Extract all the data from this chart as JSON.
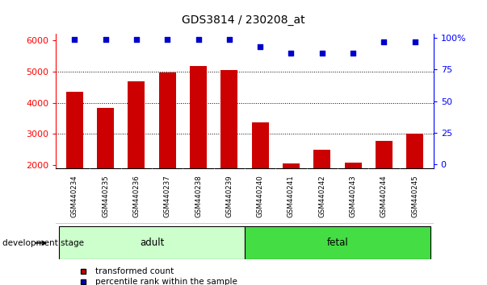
{
  "title": "GDS3814 / 230208_at",
  "samples": [
    "GSM440234",
    "GSM440235",
    "GSM440236",
    "GSM440237",
    "GSM440238",
    "GSM440239",
    "GSM440240",
    "GSM440241",
    "GSM440242",
    "GSM440243",
    "GSM440244",
    "GSM440245"
  ],
  "transformed_counts": [
    4350,
    3840,
    4700,
    4980,
    5180,
    5050,
    3360,
    2060,
    2500,
    2080,
    2780,
    3020
  ],
  "percentile_ranks": [
    99,
    99,
    99,
    99,
    99,
    99,
    93,
    88,
    88,
    88,
    97,
    97
  ],
  "ylim_left": [
    1900,
    6200
  ],
  "ylim_right": [
    -3,
    103
  ],
  "yticks_left": [
    2000,
    3000,
    4000,
    5000,
    6000
  ],
  "yticks_right": [
    0,
    25,
    50,
    75,
    100
  ],
  "bar_color": "#cc0000",
  "dot_color": "#0000cc",
  "groups": [
    {
      "label": "adult",
      "start": 0,
      "end": 6,
      "color": "#ccffcc"
    },
    {
      "label": "fetal",
      "start": 6,
      "end": 12,
      "color": "#44dd44"
    }
  ],
  "group_label_prefix": "development stage",
  "tick_label_area_color": "#cccccc",
  "legend_items": [
    {
      "color": "#cc0000",
      "label": "transformed count"
    },
    {
      "color": "#0000cc",
      "label": "percentile rank within the sample"
    }
  ]
}
